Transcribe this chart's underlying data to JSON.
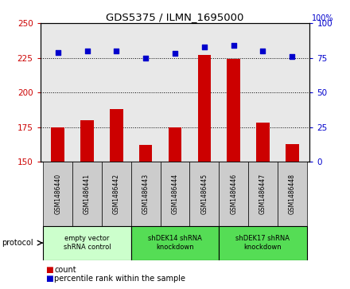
{
  "title": "GDS5375 / ILMN_1695000",
  "samples": [
    "GSM1486440",
    "GSM1486441",
    "GSM1486442",
    "GSM1486443",
    "GSM1486444",
    "GSM1486445",
    "GSM1486446",
    "GSM1486447",
    "GSM1486448"
  ],
  "count_values": [
    175,
    180,
    188,
    162,
    175,
    227,
    224,
    178,
    163
  ],
  "percentile_values": [
    79,
    80,
    80,
    75,
    78,
    83,
    84,
    80,
    76
  ],
  "ylim_left": [
    150,
    250
  ],
  "ylim_right": [
    0,
    100
  ],
  "yticks_left": [
    150,
    175,
    200,
    225,
    250
  ],
  "yticks_right": [
    0,
    25,
    50,
    75,
    100
  ],
  "groups": [
    {
      "label": "empty vector\nshRNA control",
      "start": 0,
      "end": 3,
      "color": "#ccffcc"
    },
    {
      "label": "shDEK14 shRNA\nknockdown",
      "start": 3,
      "end": 6,
      "color": "#55dd55"
    },
    {
      "label": "shDEK17 shRNA\nknockdown",
      "start": 6,
      "end": 9,
      "color": "#55dd55"
    }
  ],
  "bar_color": "#cc0000",
  "scatter_color": "#0000cc",
  "protocol_label": "protocol",
  "legend_count": "count",
  "legend_percentile": "percentile rank within the sample",
  "grid_color": "#888888",
  "background_color": "#ffffff",
  "plot_bg_color": "#e8e8e8",
  "sample_cell_color": "#cccccc",
  "bar_width": 0.45
}
